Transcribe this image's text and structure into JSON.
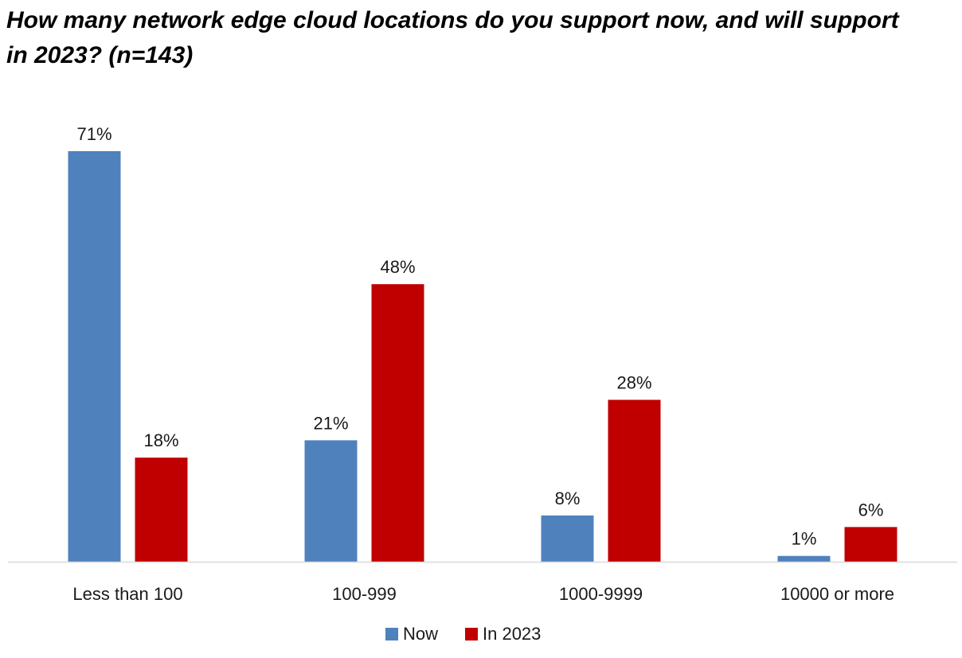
{
  "chart_data": {
    "type": "bar",
    "title": "How many network edge cloud locations do you support now, and will support in 2023? (n=143)",
    "xlabel": "",
    "ylabel": "",
    "categories": [
      "Less than 100",
      "100-999",
      "1000-9999",
      "10000 or more"
    ],
    "series": [
      {
        "name": "Now",
        "color": "#4f81bd",
        "values": [
          71,
          21,
          8,
          1
        ],
        "labels": [
          "71%",
          "21%",
          "8%",
          "1%"
        ]
      },
      {
        "name": "In 2023",
        "color": "#c00000",
        "values": [
          18,
          48,
          28,
          6
        ],
        "labels": [
          "18%",
          "48%",
          "28%",
          "6%"
        ]
      }
    ],
    "ylim": [
      0,
      71
    ],
    "grid": false,
    "legend_position": "bottom"
  }
}
